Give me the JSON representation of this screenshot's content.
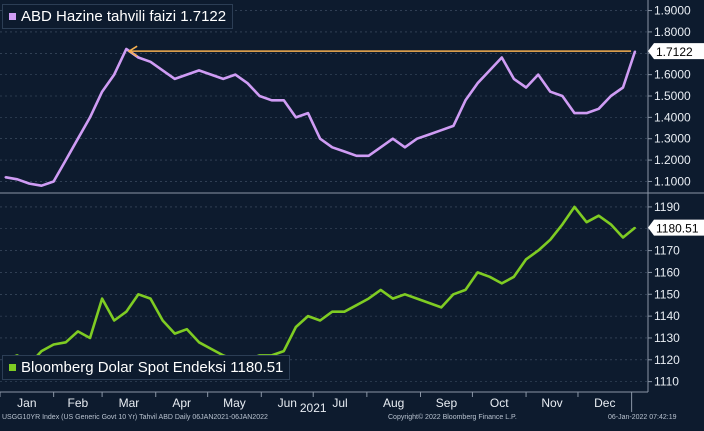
{
  "chart_data": [
    {
      "type": "line",
      "panel": "top",
      "legend_label": "ABD Hazine tahvili faizi 1.7122",
      "series_color": "#cf9cf4",
      "last_value_label": "1.7122",
      "ylim": [
        1.06,
        1.94
      ],
      "yticks": [
        "1.9000",
        "1.8000",
        "1.7000",
        "1.6000",
        "1.5000",
        "1.4000",
        "1.3000",
        "1.2000",
        "1.1000"
      ],
      "annotation": "arrow-left at last value",
      "annotation_color": "#f5b050",
      "x": [
        "2021-01-04",
        "2021-01-11",
        "2021-01-18",
        "2021-01-25",
        "2021-02-01",
        "2021-02-08",
        "2021-02-15",
        "2021-02-22",
        "2021-03-01",
        "2021-03-08",
        "2021-03-15",
        "2021-03-22",
        "2021-03-29",
        "2021-04-05",
        "2021-04-12",
        "2021-04-19",
        "2021-04-26",
        "2021-05-03",
        "2021-05-10",
        "2021-05-17",
        "2021-05-24",
        "2021-05-31",
        "2021-06-07",
        "2021-06-14",
        "2021-06-21",
        "2021-06-28",
        "2021-07-05",
        "2021-07-12",
        "2021-07-19",
        "2021-07-26",
        "2021-08-02",
        "2021-08-09",
        "2021-08-16",
        "2021-08-23",
        "2021-08-30",
        "2021-09-06",
        "2021-09-13",
        "2021-09-20",
        "2021-09-27",
        "2021-10-04",
        "2021-10-11",
        "2021-10-18",
        "2021-10-25",
        "2021-11-01",
        "2021-11-08",
        "2021-11-15",
        "2021-11-22",
        "2021-11-29",
        "2021-12-06",
        "2021-12-13",
        "2021-12-20",
        "2021-12-27",
        "2022-01-03"
      ],
      "values": [
        1.12,
        1.11,
        1.09,
        1.08,
        1.1,
        1.2,
        1.3,
        1.4,
        1.52,
        1.6,
        1.72,
        1.68,
        1.66,
        1.62,
        1.58,
        1.6,
        1.62,
        1.6,
        1.58,
        1.6,
        1.56,
        1.5,
        1.48,
        1.48,
        1.4,
        1.42,
        1.3,
        1.26,
        1.24,
        1.22,
        1.22,
        1.26,
        1.3,
        1.26,
        1.3,
        1.32,
        1.34,
        1.36,
        1.48,
        1.56,
        1.62,
        1.68,
        1.58,
        1.54,
        1.6,
        1.52,
        1.5,
        1.42,
        1.42,
        1.44,
        1.5,
        1.54,
        1.71
      ]
    },
    {
      "type": "line",
      "panel": "bottom",
      "legend_label": "Bloomberg Dolar Spot Endeksi 1180.51",
      "series_color": "#7fcc23",
      "last_value_label": "1180.51",
      "ylim": [
        1108,
        1195
      ],
      "yticks": [
        "1190",
        "1180",
        "1170",
        "1160",
        "1150",
        "1140",
        "1130",
        "1120",
        "1110"
      ],
      "x": [
        "2021-01-04",
        "2021-01-11",
        "2021-01-18",
        "2021-01-25",
        "2021-02-01",
        "2021-02-08",
        "2021-02-15",
        "2021-02-22",
        "2021-03-01",
        "2021-03-08",
        "2021-03-15",
        "2021-03-22",
        "2021-03-29",
        "2021-04-05",
        "2021-04-12",
        "2021-04-19",
        "2021-04-26",
        "2021-05-03",
        "2021-05-10",
        "2021-05-17",
        "2021-05-24",
        "2021-05-31",
        "2021-06-07",
        "2021-06-14",
        "2021-06-21",
        "2021-06-28",
        "2021-07-05",
        "2021-07-12",
        "2021-07-19",
        "2021-07-26",
        "2021-08-02",
        "2021-08-09",
        "2021-08-16",
        "2021-08-23",
        "2021-08-30",
        "2021-09-06",
        "2021-09-13",
        "2021-09-20",
        "2021-09-27",
        "2021-10-04",
        "2021-10-11",
        "2021-10-18",
        "2021-10-25",
        "2021-11-01",
        "2021-11-08",
        "2021-11-15",
        "2021-11-22",
        "2021-11-29",
        "2021-12-06",
        "2021-12-13",
        "2021-12-20",
        "2021-12-27",
        "2022-01-03"
      ],
      "values": [
        1120,
        1122,
        1118,
        1124,
        1127,
        1128,
        1133,
        1130,
        1148,
        1138,
        1142,
        1150,
        1148,
        1138,
        1132,
        1134,
        1128,
        1125,
        1122,
        1120,
        1120,
        1122,
        1122,
        1124,
        1135,
        1140,
        1138,
        1142,
        1142,
        1145,
        1148,
        1152,
        1148,
        1150,
        1148,
        1146,
        1144,
        1150,
        1152,
        1160,
        1158,
        1155,
        1158,
        1166,
        1170,
        1175,
        1182,
        1190,
        1183,
        1186,
        1182,
        1176,
        1180.51
      ]
    }
  ],
  "xaxis": {
    "months": [
      "Jan",
      "Feb",
      "Mar",
      "Apr",
      "May",
      "Jun",
      "Jul",
      "Aug",
      "Sep",
      "Oct",
      "Nov",
      "Dec"
    ],
    "year": "2021"
  },
  "footer": {
    "left": "USGG10YR Index (US Generic Govt 10 Yr) Tahvil ABD  Daily 06JAN2021-06JAN2022",
    "center": "Copyright© 2022 Bloomberg Finance L.P.",
    "right": "06-Jan-2022 07:42:19"
  },
  "colors": {
    "background": "#0d1b2e",
    "grid": "#46566b",
    "label_box": "#ffffff"
  }
}
